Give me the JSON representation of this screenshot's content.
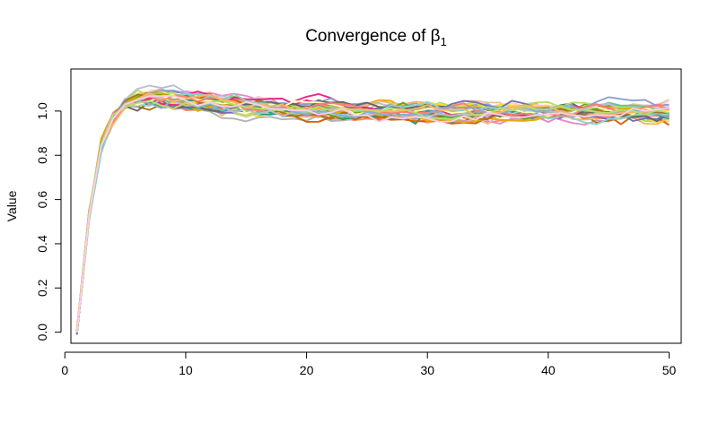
{
  "chart_data": {
    "type": "line",
    "title": "Convergence of β",
    "title_subscript": "1",
    "xlabel": "",
    "ylabel": "Value",
    "xlim": [
      0.5,
      51.0
    ],
    "ylim": [
      -0.05,
      1.19
    ],
    "x_ticks": [
      0,
      10,
      20,
      30,
      40,
      50
    ],
    "y_ticks": [
      0.0,
      0.2,
      0.4,
      0.6,
      0.8,
      1.0
    ],
    "y_tick_labels": [
      "0.0",
      "0.2",
      "0.4",
      "0.6",
      "0.8",
      "1.0"
    ],
    "grid": false,
    "legend": "none",
    "n_series": 48,
    "iterations": 50,
    "mean_path": [
      0.0,
      0.53,
      0.84,
      0.97,
      1.03,
      1.05,
      1.06,
      1.06,
      1.05,
      1.05,
      1.04,
      1.04,
      1.03,
      1.03,
      1.02,
      1.02,
      1.02,
      1.01,
      1.01,
      1.01,
      1.01,
      1.0,
      1.0,
      1.0,
      1.0,
      1.0,
      1.0,
      1.0,
      1.0,
      1.0,
      0.995,
      0.995,
      0.995,
      0.995,
      0.995,
      0.995,
      0.995,
      0.995,
      0.995,
      0.995,
      0.995,
      0.995,
      0.995,
      0.995,
      0.995,
      0.995,
      0.995,
      0.995,
      0.995,
      0.995
    ],
    "colors": [
      "#66C2A5",
      "#FC8D62",
      "#8DA0CB",
      "#E78AC3",
      "#A6D854",
      "#FFD92F",
      "#E5C494",
      "#B3B3B3",
      "#1B9E77",
      "#D95F02",
      "#7570B3",
      "#E7298A",
      "#66A61E",
      "#E6AB02",
      "#A6761D",
      "#666666",
      "#8DD3C7",
      "#FFFFB3",
      "#BEBADA",
      "#FB8072",
      "#80B1D3",
      "#FDB462",
      "#B3DE69",
      "#FCCDE5"
    ]
  }
}
